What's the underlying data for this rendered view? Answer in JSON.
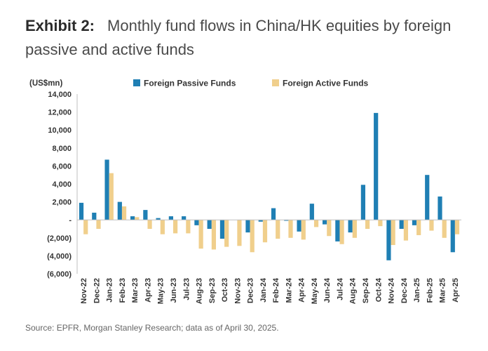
{
  "header": {
    "exhibit_label": "Exhibit 2:",
    "title": "Monthly fund flows in China/HK equities by foreign passive and active funds"
  },
  "footer": {
    "source": "Source: EPFR, Morgan Stanley Research; data as of April 30, 2025."
  },
  "chart_data": {
    "type": "bar",
    "ylabel": "(US$mn)",
    "ylim": [
      -6000,
      14000
    ],
    "ytick_values": [
      14000,
      12000,
      10000,
      8000,
      6000,
      4000,
      2000,
      0,
      -2000,
      -4000,
      -6000
    ],
    "ytick_labels": [
      "14,000",
      "12,000",
      "10,000",
      "8,000",
      "6,000",
      "4,000",
      "2,000",
      "-",
      "(2,000)",
      "(4,000)",
      "(6,000)"
    ],
    "grid": false,
    "legend_position": "top",
    "categories": [
      "Nov-22",
      "Dec-22",
      "Jan-23",
      "Feb-23",
      "Mar-23",
      "Apr-23",
      "May-23",
      "Jun-23",
      "Jul-23",
      "Aug-23",
      "Sep-23",
      "Oct-23",
      "Nov-23",
      "Dec-23",
      "Jan-24",
      "Feb-24",
      "Mar-24",
      "Apr-24",
      "May-24",
      "Jun-24",
      "Jul-24",
      "Aug-24",
      "Sep-24",
      "Oct-24",
      "Nov-24",
      "Dec-24",
      "Jan-25",
      "Feb-25",
      "Mar-25",
      "Apr-25"
    ],
    "series": [
      {
        "name": "Foreign Passive Funds",
        "color": "#1f7fb4",
        "values": [
          1900,
          800,
          6700,
          2000,
          400,
          1100,
          200,
          400,
          400,
          -600,
          -1000,
          -2100,
          0,
          -1400,
          -200,
          1300,
          -100,
          -1300,
          1800,
          -500,
          -2400,
          -1400,
          3900,
          11900,
          -4500,
          -1000,
          -600,
          5000,
          2600,
          -3600
        ]
      },
      {
        "name": "Foreign Active Funds",
        "color": "#f0cf8c",
        "values": [
          -1600,
          -1000,
          5200,
          1500,
          300,
          -1000,
          -1600,
          -1500,
          -1500,
          -3200,
          -3300,
          -3000,
          -2900,
          -3600,
          -2500,
          -2100,
          -2000,
          -2200,
          -800,
          -1800,
          -2700,
          -2000,
          -1000,
          -700,
          -2800,
          -2300,
          -1700,
          -1200,
          -2000,
          -1600
        ]
      }
    ]
  }
}
